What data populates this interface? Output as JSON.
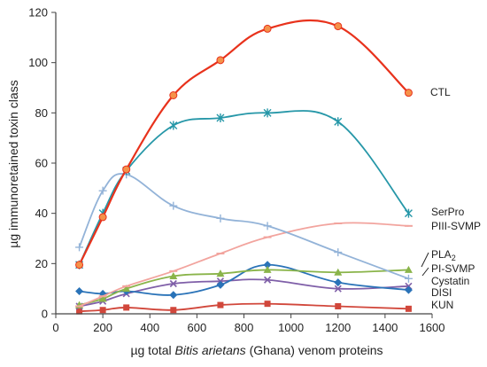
{
  "chart_data": {
    "type": "line",
    "xlabel_parts": [
      "µg total ",
      "Bitis arietans",
      " (Ghana) venom proteins"
    ],
    "ylabel": "µg immunoretained toxin class",
    "xlim": [
      0,
      1600
    ],
    "ylim": [
      0,
      120
    ],
    "xticks": [
      0,
      200,
      400,
      600,
      800,
      1000,
      1200,
      1400,
      1600
    ],
    "yticks": [
      0,
      20,
      40,
      60,
      80,
      100,
      120
    ],
    "grid": false,
    "series": [
      {
        "name": "CTL",
        "color": "#e8321c",
        "marker": "circle",
        "marker_color": "#f5924a",
        "x": [
          100,
          200,
          300,
          500,
          700,
          900,
          1200,
          1500
        ],
        "y": [
          19.5,
          38.5,
          57.5,
          87,
          101,
          113.5,
          114.5,
          88
        ]
      },
      {
        "name": "SerPro",
        "color": "#2697a8",
        "marker": "star",
        "x": [
          100,
          200,
          300,
          500,
          700,
          900,
          1200,
          1500
        ],
        "y": [
          19.5,
          40,
          57,
          75,
          78,
          80,
          76.5,
          40
        ]
      },
      {
        "name": "PIII-SVMP",
        "color": "#f2a49e",
        "marker": "dash",
        "x": [
          100,
          200,
          300,
          500,
          700,
          900,
          1200,
          1500
        ],
        "y": [
          3,
          7,
          11,
          17,
          24,
          30.5,
          36,
          35
        ]
      },
      {
        "name": "",
        "color": "#93b3d8",
        "marker": "plus",
        "x": [
          100,
          200,
          300,
          500,
          700,
          900,
          1200,
          1500
        ],
        "y": [
          26.5,
          49,
          55.5,
          43,
          38,
          35,
          24.5,
          14
        ]
      },
      {
        "name": "PLA2",
        "label_main": "PLA",
        "label_sub": "2",
        "color": "#8ab44a",
        "marker": "triangle",
        "x": [
          100,
          200,
          300,
          500,
          700,
          900,
          1200,
          1500
        ],
        "y": [
          3.5,
          6,
          10,
          15,
          16,
          17.5,
          16.5,
          17.5
        ]
      },
      {
        "name": "PI-SVMP",
        "color": "#2a73b8",
        "marker": "diamond",
        "x": [
          100,
          200,
          300,
          500,
          700,
          900,
          1200,
          1500
        ],
        "y": [
          9,
          8,
          9,
          7.5,
          11.5,
          19.5,
          12.5,
          9.5
        ]
      },
      {
        "name": "Cystatin",
        "color": "#7f5fa8",
        "marker": "cross",
        "x": [
          100,
          200,
          300,
          500,
          700,
          900,
          1200,
          1500
        ],
        "y": [
          3,
          5,
          8,
          12,
          13,
          13.5,
          10,
          11
        ]
      },
      {
        "name": "DISI",
        "color": "#000000",
        "marker": "none",
        "x": [],
        "y": []
      },
      {
        "name": "KUN",
        "color": "#d1473b",
        "marker": "square",
        "x": [
          100,
          200,
          300,
          500,
          700,
          900,
          1200,
          1500
        ],
        "y": [
          1,
          1.5,
          2.5,
          1.5,
          3.5,
          4,
          3,
          2
        ]
      }
    ]
  }
}
